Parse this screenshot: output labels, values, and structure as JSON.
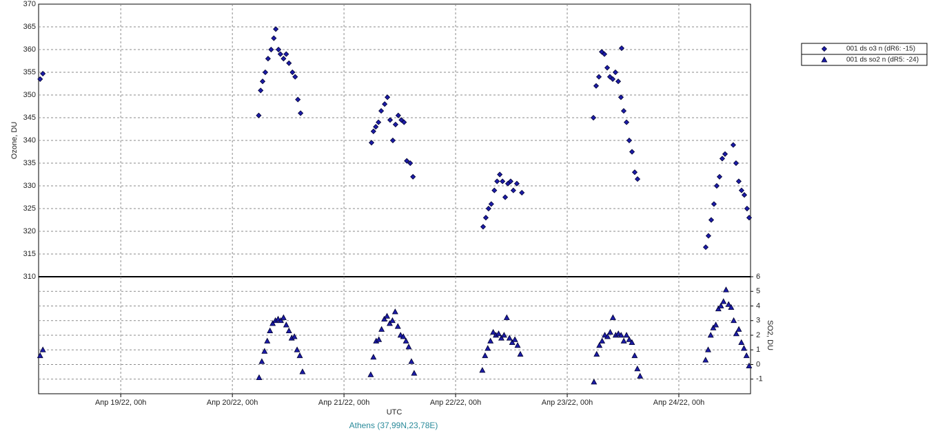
{
  "chart_data": {
    "type": "scatter",
    "xlabel": "UTC",
    "ylabel": "Ozone, DU",
    "y2label": "SO2, DU",
    "subtitle": "Athens (37,99N,23,78E)",
    "xlim": [
      "2022-04-18T06:20",
      "2022-04-24T15:25"
    ],
    "xticks": [
      {
        "value": "2022-04-19T00:00",
        "label": "Апр 19/22, 00h"
      },
      {
        "value": "2022-04-20T00:00",
        "label": "Апр 20/22, 00h"
      },
      {
        "value": "2022-04-21T00:00",
        "label": "Апр 21/22, 00h"
      },
      {
        "value": "2022-04-22T00:00",
        "label": "Апр 22/22, 00h"
      },
      {
        "value": "2022-04-23T00:00",
        "label": "Апр 23/22, 00h"
      },
      {
        "value": "2022-04-24T00:00",
        "label": "Апр 24/22, 00h"
      }
    ],
    "ylim": [
      310,
      370
    ],
    "yticks": [
      310,
      315,
      320,
      325,
      330,
      335,
      340,
      345,
      350,
      355,
      360,
      365,
      370
    ],
    "y2lim": [
      -2,
      6
    ],
    "y2ticks": [
      -1,
      0,
      1,
      2,
      3,
      4,
      5,
      6
    ],
    "grid": true,
    "legend": "upper right",
    "series": [
      {
        "name": "001 ds o3  n (dR6: -15)",
        "color": "#1c1ca8",
        "marker": "diamond",
        "x": [
          "2022-04-18T06:40",
          "2022-04-18T07:15",
          "2022-04-20T05:40",
          "2022-04-20T06:05",
          "2022-04-20T06:30",
          "2022-04-20T07:05",
          "2022-04-20T07:40",
          "2022-04-20T08:20",
          "2022-04-20T08:55",
          "2022-04-20T09:20",
          "2022-04-20T09:55",
          "2022-04-20T10:20",
          "2022-04-20T11:00",
          "2022-04-20T11:35",
          "2022-04-20T12:10",
          "2022-04-20T12:55",
          "2022-04-20T13:30",
          "2022-04-20T14:05",
          "2022-04-20T14:40",
          "2022-04-21T05:55",
          "2022-04-21T06:20",
          "2022-04-21T06:50",
          "2022-04-21T07:25",
          "2022-04-21T08:00",
          "2022-04-21T08:45",
          "2022-04-21T09:20",
          "2022-04-21T09:55",
          "2022-04-21T10:30",
          "2022-04-21T11:05",
          "2022-04-21T11:40",
          "2022-04-21T12:20",
          "2022-04-21T12:55",
          "2022-04-21T13:30",
          "2022-04-21T14:15",
          "2022-04-21T14:50",
          "2022-04-22T05:55",
          "2022-04-22T06:30",
          "2022-04-22T07:05",
          "2022-04-22T07:40",
          "2022-04-22T08:20",
          "2022-04-22T08:55",
          "2022-04-22T09:30",
          "2022-04-22T10:05",
          "2022-04-22T10:40",
          "2022-04-22T11:15",
          "2022-04-22T11:50",
          "2022-04-22T12:25",
          "2022-04-22T13:10",
          "2022-04-22T14:15",
          "2022-04-23T05:38",
          "2022-04-23T06:13",
          "2022-04-23T06:49",
          "2022-04-23T07:25",
          "2022-04-23T08:00",
          "2022-04-23T08:36",
          "2022-04-23T09:11",
          "2022-04-23T09:47",
          "2022-04-23T10:22",
          "2022-04-23T10:58",
          "2022-04-23T11:33",
          "2022-04-23T11:42",
          "2022-04-23T12:09",
          "2022-04-23T12:45",
          "2022-04-23T13:20",
          "2022-04-23T13:56",
          "2022-04-23T14:31",
          "2022-04-23T15:07",
          "2022-04-24T05:47",
          "2022-04-24T06:22",
          "2022-04-24T06:58",
          "2022-04-24T07:33",
          "2022-04-24T08:09",
          "2022-04-24T08:45",
          "2022-04-24T09:20",
          "2022-04-24T09:56",
          "2022-04-24T11:42",
          "2022-04-24T12:18",
          "2022-04-24T12:53",
          "2022-04-24T13:29",
          "2022-04-24T14:05",
          "2022-04-24T14:40",
          "2022-04-24T15:07"
        ],
        "values": [
          353.5,
          354.7,
          345.5,
          351,
          353,
          355,
          358,
          360,
          362.5,
          364.5,
          360,
          359,
          358,
          359,
          357,
          355,
          354,
          349,
          346,
          339.5,
          342,
          343,
          344,
          346.5,
          348,
          349.5,
          344.5,
          340,
          343.5,
          345.5,
          344.5,
          344,
          335.5,
          335,
          332,
          321,
          323,
          325,
          326,
          329,
          331,
          332.5,
          331,
          327.5,
          330.5,
          331,
          329,
          330.5,
          328.5,
          345,
          352,
          354,
          359.5,
          359,
          356,
          354,
          353.5,
          355,
          353,
          349.5,
          360.3,
          346.5,
          344,
          340,
          337.5,
          333,
          331.5,
          316.5,
          319,
          322.5,
          326,
          330,
          332,
          336,
          337,
          339,
          335,
          331,
          329,
          328,
          325,
          323
        ]
      },
      {
        "name": "001 ds so2 n (dR5: -24)",
        "color": "#1c1ca8",
        "marker": "triangle",
        "axis": "y2",
        "x": [
          "2022-04-18T06:40",
          "2022-04-18T07:15",
          "2022-04-20T05:45",
          "2022-04-20T06:20",
          "2022-04-20T06:55",
          "2022-04-20T07:30",
          "2022-04-20T08:05",
          "2022-04-20T08:40",
          "2022-04-20T09:15",
          "2022-04-20T09:50",
          "2022-04-20T10:25",
          "2022-04-20T11:00",
          "2022-04-20T11:35",
          "2022-04-20T12:10",
          "2022-04-20T12:45",
          "2022-04-20T13:20",
          "2022-04-20T13:55",
          "2022-04-20T14:30",
          "2022-04-20T15:05",
          "2022-04-21T05:45",
          "2022-04-21T06:20",
          "2022-04-21T06:55",
          "2022-04-21T07:30",
          "2022-04-21T08:05",
          "2022-04-21T08:40",
          "2022-04-21T09:15",
          "2022-04-21T09:50",
          "2022-04-21T10:25",
          "2022-04-21T11:00",
          "2022-04-21T11:35",
          "2022-04-21T12:10",
          "2022-04-21T12:45",
          "2022-04-21T13:20",
          "2022-04-21T13:55",
          "2022-04-21T14:30",
          "2022-04-21T15:05",
          "2022-04-22T05:45",
          "2022-04-22T06:20",
          "2022-04-22T06:55",
          "2022-04-22T07:30",
          "2022-04-22T08:05",
          "2022-04-22T08:40",
          "2022-04-22T09:15",
          "2022-04-22T09:50",
          "2022-04-22T10:25",
          "2022-04-22T11:00",
          "2022-04-22T11:35",
          "2022-04-22T12:10",
          "2022-04-22T12:45",
          "2022-04-22T13:20",
          "2022-04-22T13:55",
          "2022-04-23T05:45",
          "2022-04-23T06:20",
          "2022-04-23T06:55",
          "2022-04-23T07:30",
          "2022-04-23T08:05",
          "2022-04-23T08:40",
          "2022-04-23T09:15",
          "2022-04-23T09:50",
          "2022-04-23T10:25",
          "2022-04-23T11:00",
          "2022-04-23T11:35",
          "2022-04-23T12:10",
          "2022-04-23T12:45",
          "2022-04-23T13:20",
          "2022-04-23T13:55",
          "2022-04-23T14:30",
          "2022-04-23T15:05",
          "2022-04-23T15:40",
          "2022-04-24T05:45",
          "2022-04-24T06:18",
          "2022-04-24T06:51",
          "2022-04-24T07:24",
          "2022-04-24T07:57",
          "2022-04-24T08:30",
          "2022-04-24T09:03",
          "2022-04-24T09:36",
          "2022-04-24T10:09",
          "2022-04-24T10:42",
          "2022-04-24T11:15",
          "2022-04-24T11:48",
          "2022-04-24T12:21",
          "2022-04-24T12:54",
          "2022-04-24T13:27",
          "2022-04-24T14:00",
          "2022-04-24T14:33",
          "2022-04-24T15:06"
        ],
        "values": [
          0.6,
          1.0,
          -0.9,
          0.2,
          0.9,
          1.6,
          2.3,
          2.8,
          3.0,
          3.1,
          3.0,
          3.2,
          2.7,
          2.3,
          1.8,
          1.9,
          1.0,
          0.6,
          -0.5,
          -0.7,
          0.5,
          1.6,
          1.7,
          2.4,
          3.1,
          3.3,
          2.8,
          3.0,
          3.6,
          2.6,
          2.0,
          1.9,
          1.6,
          1.2,
          0.2,
          -0.6,
          -0.4,
          0.6,
          1.1,
          1.6,
          2.2,
          2.0,
          2.1,
          1.8,
          2.0,
          3.2,
          1.8,
          1.5,
          1.7,
          1.3,
          0.7,
          -1.2,
          0.7,
          1.3,
          1.6,
          2.0,
          1.9,
          2.2,
          3.2,
          2.0,
          2.1,
          2.0,
          1.6,
          2.0,
          1.7,
          1.5,
          0.6,
          -0.3,
          -0.8,
          0.3,
          1.0,
          2.0,
          2.5,
          2.7,
          3.8,
          4.0,
          4.3,
          5.1,
          4.1,
          3.9,
          3.0,
          2.1,
          2.4,
          1.5,
          1.1,
          0.6,
          -0.1
        ]
      }
    ]
  }
}
